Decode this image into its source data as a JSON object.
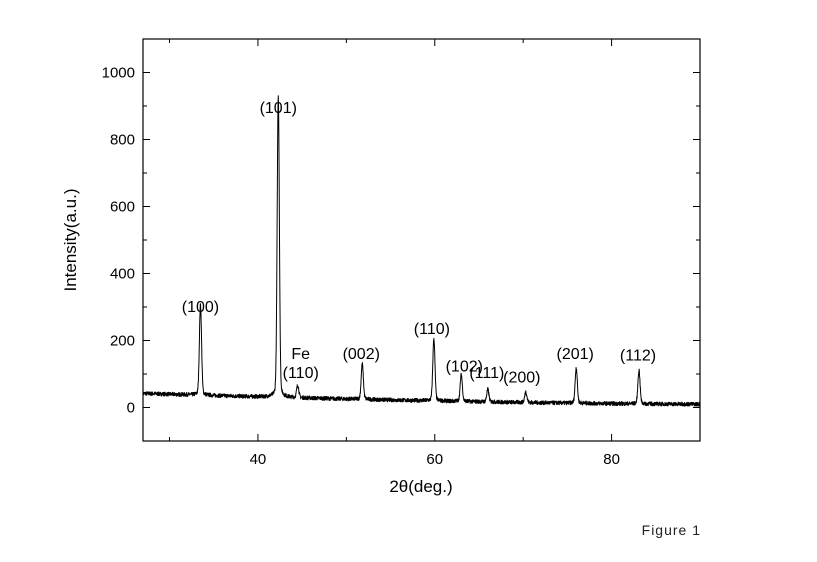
{
  "caption": "Figure 1",
  "chart_data": {
    "type": "line",
    "title": "",
    "xlabel": "2θ(deg.)",
    "ylabel": "Intensity(a.u.)",
    "xlim": [
      27,
      90
    ],
    "ylim": [
      -100,
      1100
    ],
    "x_ticks": [
      40,
      60,
      80
    ],
    "x_minor_ticks": [
      30,
      50,
      70,
      90
    ],
    "y_ticks": [
      0,
      200,
      400,
      600,
      800,
      1000
    ],
    "y_minor_ticks": [
      -100,
      100,
      300,
      500,
      700,
      900,
      1100
    ],
    "grid": false,
    "legend": "none",
    "line_color": "#000000",
    "background": {
      "start": [
        27,
        42
      ],
      "end": [
        90,
        10
      ]
    },
    "peaks": [
      {
        "x": 33.5,
        "y": 255,
        "label": "(100)"
      },
      {
        "x": 42.3,
        "y": 850,
        "label": "(101)"
      },
      {
        "x": 44.5,
        "y": 35,
        "label": "Fe\n(110)"
      },
      {
        "x": 51.8,
        "y": 100,
        "label": "(002)"
      },
      {
        "x": 59.9,
        "y": 175,
        "label": "(110)"
      },
      {
        "x": 63.0,
        "y": 75,
        "label": "(102)"
      },
      {
        "x": 66.0,
        "y": 35,
        "label": "(111)"
      },
      {
        "x": 70.3,
        "y": 30,
        "label": "(200)"
      },
      {
        "x": 76.0,
        "y": 100,
        "label": "(201)"
      },
      {
        "x": 83.1,
        "y": 95,
        "label": "(112)"
      }
    ]
  }
}
